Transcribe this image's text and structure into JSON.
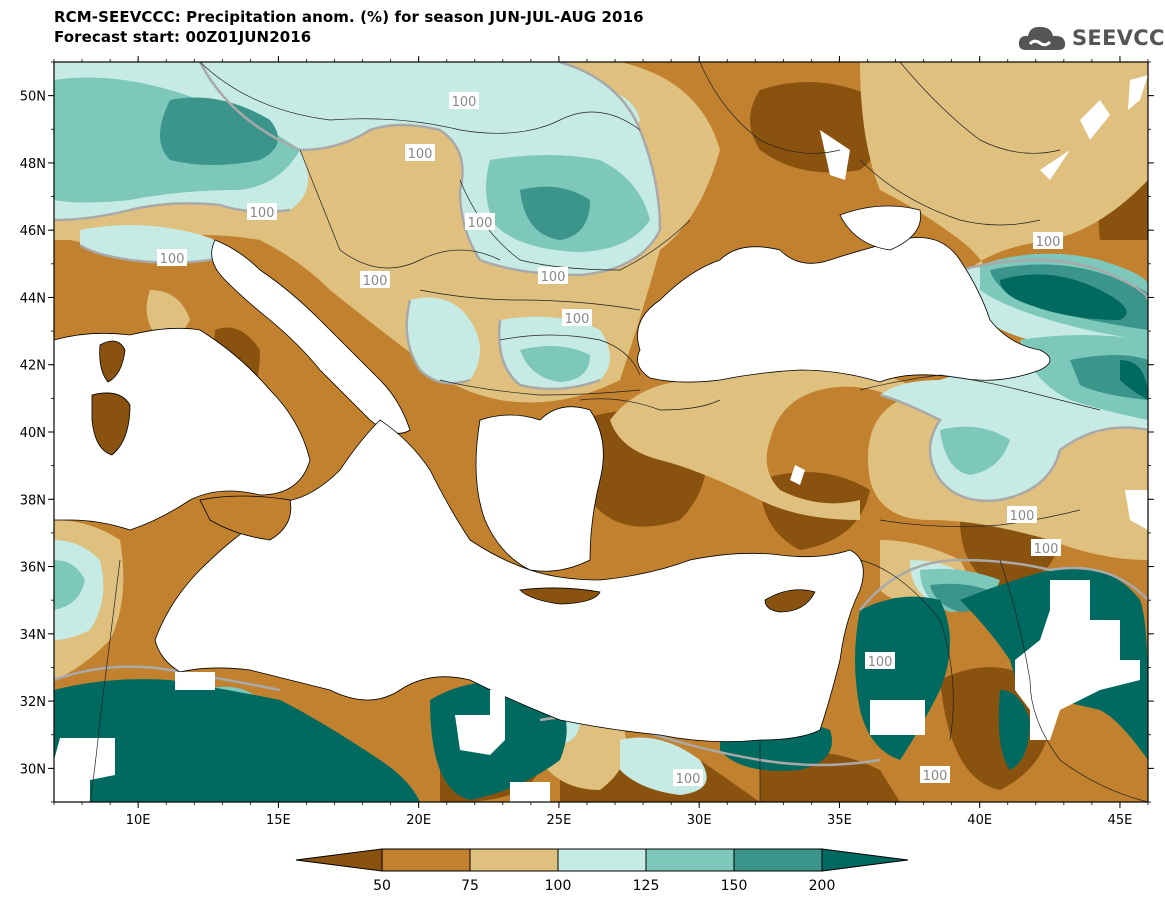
{
  "header": {
    "title_line1": "RCM-SEEVCCC: Precipitation anom. (%) for season JUN-JUL-AUG 2016",
    "title_line2": "Forecast start: 00Z01JUN2016",
    "logo_text": "SEEVCCC"
  },
  "map": {
    "lon_range": [
      7,
      46
    ],
    "lat_range": [
      29,
      51
    ],
    "lat_ticks": [
      "50N",
      "48N",
      "46N",
      "44N",
      "42N",
      "40N",
      "38N",
      "36N",
      "34N",
      "32N",
      "30N"
    ],
    "lon_ticks": [
      "10E",
      "15E",
      "20E",
      "25E",
      "30E",
      "35E",
      "40E",
      "45E"
    ],
    "contour_labels": [
      "100",
      "100",
      "100",
      "100",
      "100",
      "100",
      "100",
      "100",
      "100",
      "100",
      "100",
      "100",
      "100",
      "100"
    ]
  },
  "colorbar": {
    "levels": [
      "50",
      "75",
      "100",
      "125",
      "150",
      "200"
    ],
    "colors": [
      "#8a520f",
      "#c1812f",
      "#dfc07e",
      "#c6ebe4",
      "#7dc8bb",
      "#3b958b",
      "#006a60"
    ]
  },
  "colors": {
    "sea": "#ffffff",
    "coast": "#000000",
    "contour100": "#a9a9a9"
  }
}
